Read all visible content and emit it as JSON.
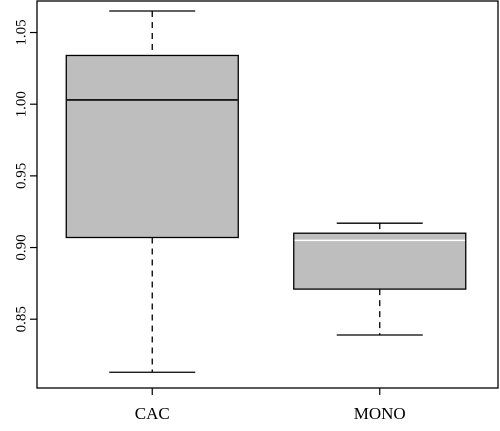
{
  "chart_data": {
    "type": "boxplot",
    "title": "",
    "xlabel": "",
    "ylabel": "",
    "ylim": [
      0.802,
      1.072
    ],
    "yticks": [
      0.85,
      0.9,
      0.95,
      1.0,
      1.05
    ],
    "ytick_labels": [
      "0.85",
      "0.90",
      "0.95",
      "1.00",
      "1.05"
    ],
    "categories": [
      "CAC",
      "MONO"
    ],
    "boxes": [
      {
        "category": "CAC",
        "whisker_low": 0.813,
        "q1": 0.907,
        "median": 1.003,
        "q3": 1.034,
        "whisker_high": 1.065,
        "median_color": "#000000"
      },
      {
        "category": "MONO",
        "whisker_low": 0.839,
        "q1": 0.871,
        "median": 0.905,
        "q3": 0.91,
        "whisker_high": 0.917,
        "median_color": "#ffffff"
      }
    ],
    "box_fill": "#bebebe",
    "line_color": "#000000",
    "grid": false,
    "legend": "none"
  }
}
